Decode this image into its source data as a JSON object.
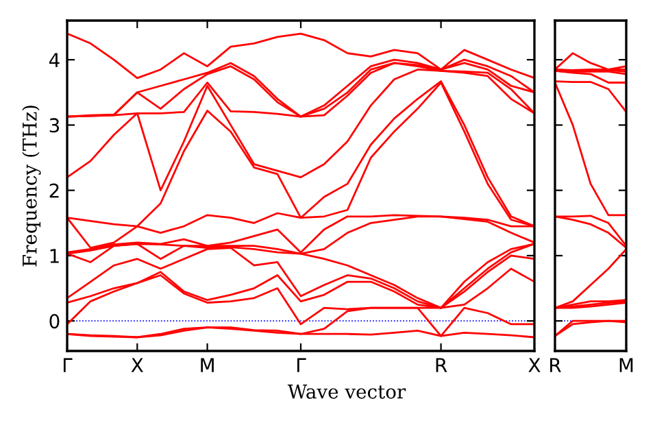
{
  "chart_data": [
    {
      "type": "line",
      "xlabel": "Wave vector",
      "ylabel": "Frequency (THz)",
      "ylim": [
        -0.46,
        4.6
      ],
      "categories": [
        "Γ",
        null,
        null,
        "X",
        null,
        null,
        "M",
        null,
        null,
        null,
        "Γ",
        null,
        null,
        null,
        null,
        null,
        "R",
        null,
        null,
        null,
        "X"
      ],
      "yticks": [
        0,
        1,
        2,
        3,
        4
      ],
      "grid": false,
      "legend": false,
      "marker": "none",
      "line_style": "solid",
      "ref_lines": [
        {
          "axis": "y",
          "value": 0,
          "color": "#0000ff",
          "line_style": "dotted"
        }
      ],
      "series": [
        {
          "color": "#ff0000",
          "values": [
            -0.2,
            -0.23,
            -0.24,
            -0.25,
            -0.22,
            -0.15,
            -0.1,
            -0.12,
            -0.15,
            -0.18,
            -0.2,
            -0.2,
            -0.2,
            -0.21,
            -0.18,
            -0.15,
            -0.23,
            -0.18,
            -0.2,
            -0.22,
            -0.25
          ]
        },
        {
          "color": "#ff0000",
          "values": [
            -0.2,
            -0.22,
            -0.23,
            -0.25,
            -0.2,
            -0.12,
            -0.1,
            -0.1,
            -0.14,
            -0.15,
            -0.2,
            -0.12,
            0.15,
            0.2,
            0.2,
            0.2,
            -0.23,
            0.2,
            0.12,
            -0.05,
            -0.05
          ]
        },
        {
          "color": "#ff0000",
          "values": [
            -0.05,
            0.3,
            0.45,
            0.58,
            0.7,
            0.42,
            0.28,
            0.3,
            0.35,
            0.5,
            -0.05,
            0.2,
            0.18,
            0.2,
            0.2,
            0.2,
            0.2,
            0.25,
            0.5,
            0.8,
            0.6
          ]
        },
        {
          "color": "#ff0000",
          "values": [
            0.28,
            0.38,
            0.5,
            0.58,
            0.75,
            0.45,
            0.32,
            0.4,
            0.5,
            0.7,
            0.3,
            0.4,
            0.6,
            0.6,
            0.45,
            0.25,
            0.2,
            0.45,
            0.75,
            1.0,
            0.95
          ]
        },
        {
          "color": "#ff0000",
          "values": [
            0.35,
            0.6,
            0.85,
            0.95,
            0.8,
            0.95,
            1.1,
            1.12,
            0.85,
            0.9,
            0.38,
            0.55,
            0.7,
            0.65,
            0.5,
            0.3,
            0.2,
            0.5,
            0.8,
            1.05,
            1.18
          ]
        },
        {
          "color": "#ff0000",
          "values": [
            1.03,
            0.9,
            1.15,
            1.18,
            0.95,
            1.15,
            1.12,
            1.13,
            1.1,
            1.05,
            1.03,
            0.95,
            0.85,
            0.7,
            0.55,
            0.35,
            0.2,
            0.6,
            0.9,
            1.1,
            1.18
          ]
        },
        {
          "color": "#ff0000",
          "values": [
            1.03,
            1.08,
            1.15,
            1.18,
            1.17,
            1.15,
            1.15,
            1.15,
            1.15,
            1.1,
            1.03,
            1.1,
            1.35,
            1.5,
            1.55,
            1.6,
            1.6,
            1.56,
            1.52,
            1.35,
            1.2
          ]
        },
        {
          "color": "#ff0000",
          "values": [
            1.05,
            1.1,
            1.17,
            1.2,
            1.18,
            1.25,
            1.15,
            1.2,
            1.3,
            1.4,
            1.05,
            1.4,
            1.6,
            1.6,
            1.62,
            1.61,
            1.6,
            1.58,
            1.55,
            1.45,
            1.45
          ]
        },
        {
          "color": "#ff0000",
          "values": [
            1.58,
            1.12,
            1.2,
            1.45,
            1.35,
            1.45,
            1.62,
            1.58,
            1.5,
            1.65,
            1.58,
            1.6,
            1.7,
            2.5,
            2.9,
            3.25,
            3.65,
            2.9,
            2.1,
            1.55,
            1.45
          ]
        },
        {
          "color": "#ff0000",
          "values": [
            1.58,
            1.53,
            1.48,
            1.45,
            1.8,
            2.6,
            3.22,
            2.9,
            2.35,
            2.25,
            1.58,
            1.9,
            2.1,
            2.7,
            3.1,
            3.4,
            3.67,
            3.0,
            2.2,
            1.6,
            1.45
          ]
        },
        {
          "color": "#ff0000",
          "values": [
            2.2,
            2.45,
            2.85,
            3.18,
            2.0,
            2.75,
            3.6,
            3.0,
            2.4,
            2.3,
            2.2,
            2.4,
            2.75,
            3.3,
            3.7,
            3.85,
            3.83,
            3.8,
            3.75,
            3.4,
            3.18
          ]
        },
        {
          "color": "#ff0000",
          "values": [
            3.13,
            3.14,
            3.15,
            3.18,
            3.18,
            3.2,
            3.65,
            3.21,
            3.2,
            3.17,
            3.13,
            3.15,
            3.45,
            3.8,
            3.95,
            3.9,
            3.83,
            3.82,
            3.8,
            3.55,
            3.18
          ]
        },
        {
          "color": "#ff0000",
          "values": [
            3.13,
            3.14,
            3.15,
            3.5,
            3.25,
            3.55,
            3.78,
            3.9,
            3.7,
            3.35,
            3.13,
            3.25,
            3.5,
            3.85,
            3.95,
            3.92,
            3.85,
            3.95,
            3.85,
            3.6,
            3.5
          ]
        },
        {
          "color": "#ff0000",
          "values": [
            3.13,
            3.15,
            3.16,
            3.5,
            3.6,
            3.7,
            3.8,
            3.95,
            3.75,
            3.4,
            3.13,
            3.3,
            3.6,
            3.9,
            4.0,
            3.95,
            3.85,
            4.0,
            3.9,
            3.75,
            3.5
          ]
        },
        {
          "color": "#ff0000",
          "values": [
            4.4,
            4.25,
            4.0,
            3.72,
            3.85,
            4.1,
            3.9,
            4.2,
            4.25,
            4.35,
            4.4,
            4.3,
            4.1,
            4.05,
            4.15,
            4.1,
            3.85,
            4.15,
            4.0,
            3.85,
            3.72
          ]
        }
      ]
    },
    {
      "type": "line",
      "ylim": [
        -0.46,
        4.6
      ],
      "categories": [
        "R",
        null,
        null,
        null,
        "M"
      ],
      "yticks": [
        {
          "value": 0,
          "label": null
        },
        {
          "value": 1,
          "label": null
        },
        {
          "value": 2,
          "label": null
        },
        {
          "value": 3,
          "label": null
        },
        {
          "value": 4,
          "label": null
        }
      ],
      "tick_labels": "x",
      "grid": false,
      "legend": false,
      "marker": "none",
      "line_style": "solid",
      "ref_lines": [
        {
          "axis": "y",
          "value": 0,
          "color": "#0000ff",
          "line_style": "dotted"
        }
      ],
      "series": [
        {
          "color": "#ff0000",
          "values": [
            -0.23,
            -0.05,
            -0.02,
            0.0,
            -0.02
          ]
        },
        {
          "color": "#ff0000",
          "values": [
            -0.23,
            0.0,
            0.0,
            0.0,
            0.0
          ]
        },
        {
          "color": "#ff0000",
          "values": [
            0.2,
            0.2,
            0.22,
            0.25,
            0.28
          ]
        },
        {
          "color": "#ff0000",
          "values": [
            0.2,
            0.22,
            0.25,
            0.28,
            0.3
          ]
        },
        {
          "color": "#ff0000",
          "values": [
            0.2,
            0.25,
            0.3,
            0.3,
            0.32
          ]
        },
        {
          "color": "#ff0000",
          "values": [
            0.2,
            0.3,
            0.55,
            0.8,
            1.1
          ]
        },
        {
          "color": "#ff0000",
          "values": [
            1.6,
            1.55,
            1.48,
            1.35,
            1.12
          ]
        },
        {
          "color": "#ff0000",
          "values": [
            1.6,
            1.6,
            1.61,
            1.5,
            1.15
          ]
        },
        {
          "color": "#ff0000",
          "values": [
            3.65,
            3.0,
            2.1,
            1.62,
            1.62
          ]
        },
        {
          "color": "#ff0000",
          "values": [
            3.67,
            3.66,
            3.66,
            3.55,
            3.2
          ]
        },
        {
          "color": "#ff0000",
          "values": [
            3.83,
            3.8,
            3.78,
            3.65,
            3.65
          ]
        },
        {
          "color": "#ff0000",
          "values": [
            3.83,
            3.82,
            3.82,
            3.82,
            3.78
          ]
        },
        {
          "color": "#ff0000",
          "values": [
            3.85,
            3.83,
            3.83,
            3.84,
            3.82
          ]
        },
        {
          "color": "#ff0000",
          "values": [
            3.85,
            3.84,
            3.85,
            3.85,
            3.85
          ]
        },
        {
          "color": "#ff0000",
          "values": [
            3.85,
            4.1,
            3.95,
            3.85,
            3.9
          ]
        }
      ]
    }
  ]
}
